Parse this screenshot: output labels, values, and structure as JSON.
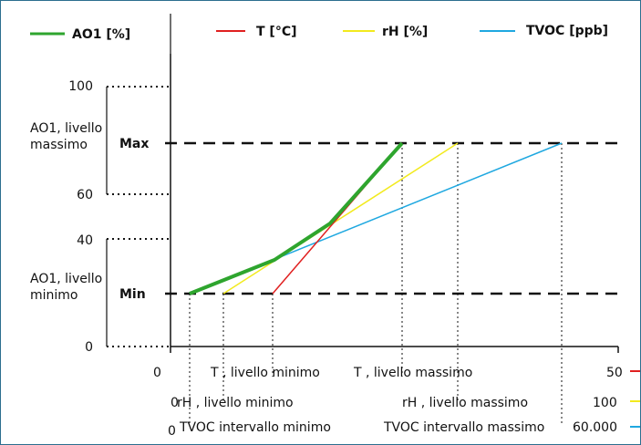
{
  "legend": {
    "ao1": "AO1 [%]",
    "t": "T [°C]",
    "rh": "rH [%]",
    "tvoc": "TVOC [ppb]"
  },
  "colors": {
    "ao1": "#2ea52e",
    "t": "#e02020",
    "rh": "#f2ea1e",
    "tvoc": "#1fa8e0",
    "frame": "#2c6e8f"
  },
  "y_axis": {
    "tick_100": "100",
    "tick_60": "60",
    "tick_40": "40",
    "tick_0": "0",
    "max_label": "Max",
    "min_label": "Min",
    "ao1_max_line1": "AO1, livello",
    "ao1_max_line2": "massimo",
    "ao1_min_line1": "AO1, livello",
    "ao1_min_line2": "minimo"
  },
  "x_axis": {
    "t_row": {
      "start": "0",
      "min_label": "T , livello minimo",
      "max_label": "T , livello massimo",
      "end": "50"
    },
    "rh_row": {
      "start": "0",
      "min_label": "rH , livello minimo",
      "max_label": "rH , livello massimo",
      "end": "100"
    },
    "tvoc_row": {
      "start": "0",
      "min_label": "TVOC intervallo minimo",
      "max_label": "TVOC intervallo massimo",
      "end": "60.000"
    }
  }
}
